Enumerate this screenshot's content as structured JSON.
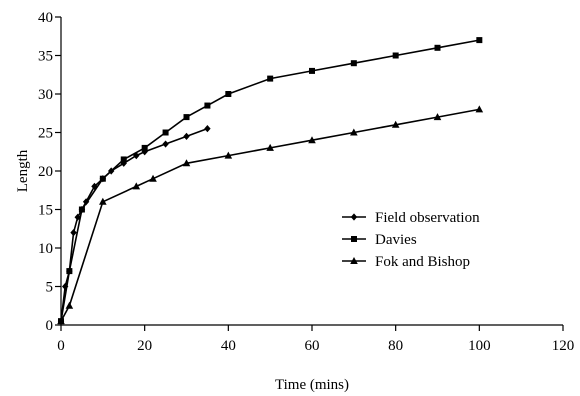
{
  "chart_data": {
    "type": "line",
    "xlabel": "Time (mins)",
    "ylabel": "Length",
    "xlim": [
      0,
      120
    ],
    "ylim": [
      0,
      40
    ],
    "xticks": [
      0,
      20,
      40,
      60,
      80,
      100,
      120
    ],
    "yticks": [
      0,
      5,
      10,
      15,
      20,
      25,
      30,
      35,
      40
    ],
    "grid": false,
    "legend_position": "right",
    "series": [
      {
        "name": "Field observation",
        "marker": "diamond",
        "x": [
          0,
          1,
          2,
          3,
          4,
          5,
          6,
          8,
          10,
          12,
          15,
          18,
          20,
          25,
          30,
          35
        ],
        "y": [
          0.5,
          5,
          7,
          12,
          14,
          15,
          16,
          18,
          19,
          20,
          21,
          22,
          22.5,
          23.5,
          24.5,
          25.5
        ]
      },
      {
        "name": "Davies",
        "marker": "square",
        "x": [
          0,
          2,
          5,
          10,
          15,
          20,
          25,
          30,
          35,
          40,
          50,
          60,
          70,
          80,
          90,
          100
        ],
        "y": [
          0.5,
          7,
          15,
          19,
          21.5,
          23,
          25,
          27,
          28.5,
          30,
          32,
          33,
          34,
          35,
          36,
          37
        ]
      },
      {
        "name": "Fok and Bishop",
        "marker": "triangle",
        "x": [
          0,
          2,
          10,
          18,
          22,
          30,
          40,
          50,
          60,
          70,
          80,
          90,
          100
        ],
        "y": [
          0.5,
          2.5,
          16,
          18,
          19,
          21,
          22,
          23,
          24,
          25,
          26,
          27,
          28
        ]
      }
    ]
  }
}
